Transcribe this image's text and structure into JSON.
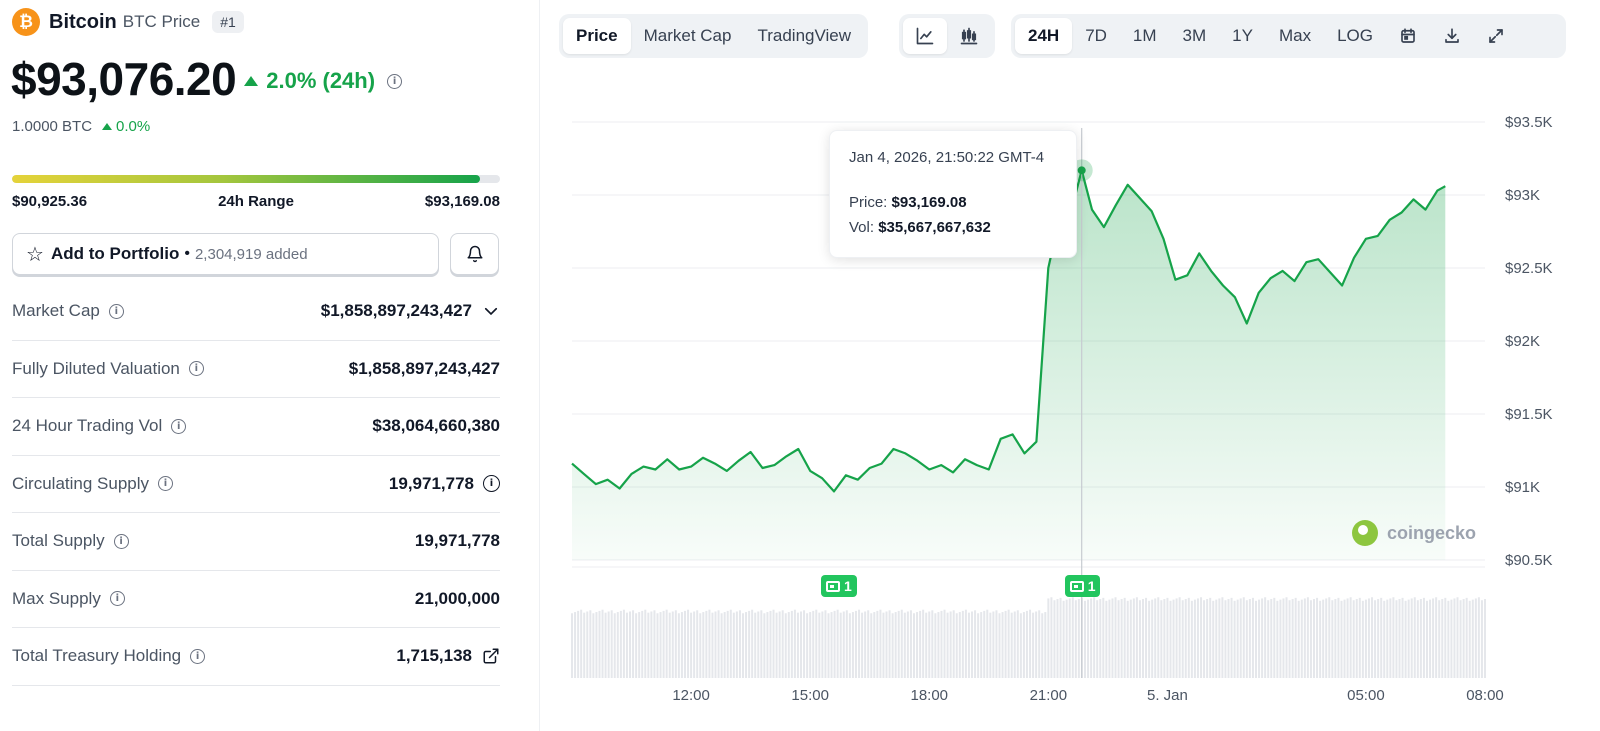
{
  "coin": {
    "logo_glyph": "₿",
    "name": "Bitcoin",
    "subtitle": "BTC Price",
    "rank": "#1",
    "price": "$93,076.20",
    "change_24h": "2.0% (24h)",
    "btc_value": "1.0000 BTC",
    "btc_change": "0.0%",
    "accent_green": "#16a34a",
    "brand_orange": "#f7931a"
  },
  "range": {
    "low": "$90,925.36",
    "label": "24h Range",
    "high": "$93,169.08",
    "fill_fraction": 0.958
  },
  "portfolio": {
    "add_label": "Add to Portfolio",
    "separator": "•",
    "added_count": "2,304,919 added",
    "star_icon": "star-icon",
    "bell_icon": "bell-icon"
  },
  "stats": [
    {
      "label": "Market Cap",
      "value": "$1,858,897,243,427",
      "extra": "chevron"
    },
    {
      "label": "Fully Diluted Valuation",
      "value": "$1,858,897,243,427",
      "extra": ""
    },
    {
      "label": "24 Hour Trading Vol",
      "value": "$38,064,660,380",
      "extra": ""
    },
    {
      "label": "Circulating Supply",
      "value": "19,971,778",
      "extra": "info"
    },
    {
      "label": "Total Supply",
      "value": "19,971,778",
      "extra": ""
    },
    {
      "label": "Max Supply",
      "value": "21,000,000",
      "extra": ""
    },
    {
      "label": "Total Treasury Holding",
      "value": "1,715,138",
      "extra": "external"
    }
  ],
  "toolbar": {
    "chart_tabs": [
      "Price",
      "Market Cap",
      "TradingView"
    ],
    "chart_tab_active": "Price",
    "view_icons": [
      "line-chart-icon",
      "candlestick-icon"
    ],
    "ranges": [
      "24H",
      "7D",
      "1M",
      "3M",
      "1Y",
      "Max",
      "LOG"
    ],
    "range_active": "24H",
    "action_icons": [
      "calendar-icon",
      "download-icon",
      "expand-icon"
    ]
  },
  "tooltip": {
    "date": "Jan 4, 2026, 21:50:22 GMT-4",
    "price_label": "Price:",
    "price_value": "$93,169.08",
    "vol_label": "Vol:",
    "vol_value": "$35,667,667,632"
  },
  "watermark": "coingecko",
  "news_badges": [
    {
      "count": "1",
      "time_hours": 15.7
    },
    {
      "count": "1",
      "time_hours": 21.84
    }
  ],
  "chart_data": {
    "type": "area",
    "series": [
      {
        "values": [
          [
            9.0,
            91160
          ],
          [
            9.3,
            91090
          ],
          [
            9.6,
            91020
          ],
          [
            9.9,
            91050
          ],
          [
            10.2,
            90990
          ],
          [
            10.5,
            91090
          ],
          [
            10.8,
            91140
          ],
          [
            11.1,
            91120
          ],
          [
            11.4,
            91190
          ],
          [
            11.7,
            91120
          ],
          [
            12.0,
            91140
          ],
          [
            12.3,
            91200
          ],
          [
            12.6,
            91160
          ],
          [
            12.9,
            91110
          ],
          [
            13.2,
            91180
          ],
          [
            13.5,
            91240
          ],
          [
            13.8,
            91130
          ],
          [
            14.1,
            91150
          ],
          [
            14.4,
            91210
          ],
          [
            14.7,
            91260
          ],
          [
            15.0,
            91110
          ],
          [
            15.3,
            91060
          ],
          [
            15.6,
            90970
          ],
          [
            15.9,
            91080
          ],
          [
            16.2,
            91050
          ],
          [
            16.5,
            91130
          ],
          [
            16.8,
            91160
          ],
          [
            17.1,
            91260
          ],
          [
            17.4,
            91230
          ],
          [
            17.7,
            91180
          ],
          [
            18.0,
            91120
          ],
          [
            18.3,
            91150
          ],
          [
            18.6,
            91100
          ],
          [
            18.9,
            91190
          ],
          [
            19.2,
            91150
          ],
          [
            19.5,
            91120
          ],
          [
            19.8,
            91330
          ],
          [
            20.1,
            91360
          ],
          [
            20.4,
            91230
          ],
          [
            20.7,
            91310
          ],
          [
            21.0,
            92500
          ],
          [
            21.3,
            92870
          ],
          [
            21.5,
            92810
          ],
          [
            21.84,
            93169
          ],
          [
            22.1,
            92900
          ],
          [
            22.4,
            92780
          ],
          [
            22.7,
            92930
          ],
          [
            23.0,
            93070
          ],
          [
            23.3,
            92980
          ],
          [
            23.6,
            92890
          ],
          [
            23.9,
            92700
          ],
          [
            24.2,
            92420
          ],
          [
            24.5,
            92450
          ],
          [
            24.8,
            92600
          ],
          [
            25.1,
            92480
          ],
          [
            25.4,
            92380
          ],
          [
            25.7,
            92300
          ],
          [
            26.0,
            92120
          ],
          [
            26.3,
            92330
          ],
          [
            26.6,
            92430
          ],
          [
            26.9,
            92480
          ],
          [
            27.2,
            92410
          ],
          [
            27.5,
            92540
          ],
          [
            27.8,
            92560
          ],
          [
            28.1,
            92470
          ],
          [
            28.4,
            92380
          ],
          [
            28.7,
            92570
          ],
          [
            29.0,
            92700
          ],
          [
            29.3,
            92720
          ],
          [
            29.6,
            92830
          ],
          [
            29.9,
            92880
          ],
          [
            30.2,
            92970
          ],
          [
            30.5,
            92900
          ],
          [
            30.8,
            93030
          ],
          [
            31.0,
            93060
          ]
        ]
      }
    ],
    "volume_label": "Vol",
    "x_ticks": [
      {
        "pos": 12,
        "label": "12:00"
      },
      {
        "pos": 15,
        "label": "15:00"
      },
      {
        "pos": 18,
        "label": "18:00"
      },
      {
        "pos": 21,
        "label": "21:00"
      },
      {
        "pos": 24,
        "label": "5. Jan"
      },
      {
        "pos": 29,
        "label": "05:00"
      },
      {
        "pos": 32,
        "label": "08:00"
      }
    ],
    "y_ticks": [
      {
        "value": 93500,
        "label": "$93.5K"
      },
      {
        "value": 93000,
        "label": "$93K"
      },
      {
        "value": 92500,
        "label": "$92.5K"
      },
      {
        "value": 92000,
        "label": "$92K"
      },
      {
        "value": 91500,
        "label": "$91.5K"
      },
      {
        "value": 91000,
        "label": "$91K"
      },
      {
        "value": 90500,
        "label": "$90.5K"
      }
    ],
    "ylim": [
      90500,
      93500
    ],
    "xlim": [
      9.0,
      32.0
    ],
    "grid": true,
    "hover_x": 21.84,
    "line_color": "#16a34a"
  }
}
